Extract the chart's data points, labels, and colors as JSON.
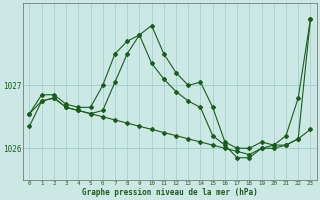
{
  "title": "Graphe pression niveau de la mer (hPa)",
  "bg_color": "#cce8e4",
  "grid_color": "#99cccc",
  "line_color": "#1a5c1a",
  "marker_color": "#1a5c1a",
  "x_ticks": [
    0,
    1,
    2,
    3,
    4,
    5,
    6,
    7,
    8,
    9,
    10,
    11,
    12,
    13,
    14,
    15,
    16,
    17,
    18,
    19,
    20,
    21,
    22,
    23
  ],
  "y_ticks": [
    1026,
    1027
  ],
  "ylim": [
    1025.5,
    1028.3
  ],
  "xlim": [
    -0.5,
    23.5
  ],
  "series1": [
    1026.55,
    1026.75,
    1026.8,
    1026.65,
    1026.6,
    1026.55,
    1026.5,
    1026.45,
    1026.4,
    1026.35,
    1026.3,
    1026.25,
    1026.2,
    1026.15,
    1026.1,
    1026.05,
    1026.0,
    1025.95,
    1025.9,
    1026.0,
    1026.0,
    1026.05,
    1026.15,
    1026.3
  ],
  "series2": [
    1026.55,
    1026.85,
    1026.85,
    1026.7,
    1026.65,
    1026.65,
    1027.0,
    1027.5,
    1027.7,
    1027.8,
    1027.35,
    1027.1,
    1026.9,
    1026.75,
    1026.65,
    1026.2,
    1026.05,
    1025.85,
    1025.85,
    1026.0,
    1026.05,
    1026.2,
    1026.8,
    1028.05
  ],
  "series3": [
    1026.35,
    1026.75,
    1026.8,
    1026.65,
    1026.6,
    1026.55,
    1026.6,
    1027.05,
    1027.5,
    1027.8,
    1027.95,
    1027.5,
    1027.2,
    1027.0,
    1027.05,
    1026.65,
    1026.1,
    1026.0,
    1026.0,
    1026.1,
    1026.05,
    1026.05,
    1026.15,
    1028.05
  ]
}
